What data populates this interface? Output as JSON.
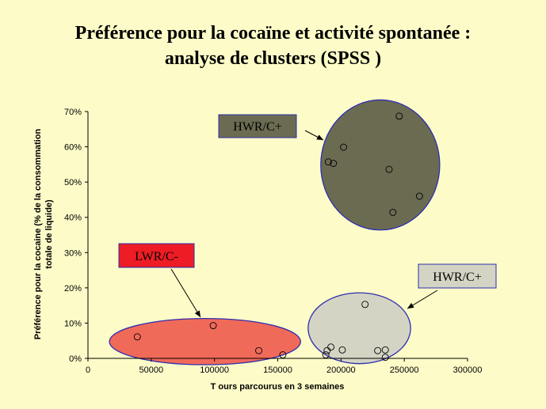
{
  "slide": {
    "title_line1": "Préférence pour la cocaïne et activité spontanée :",
    "title_line2": "analyse de clusters (SPSS )",
    "background": "#fdfcc8"
  },
  "chart_data": {
    "type": "scatter",
    "title": "",
    "xlabel": "T ours parcourus en 3 semaines",
    "ylabel_line1": "Préférence pour la cocaine (% de la consommation",
    "ylabel_line2": "totale de liquide)",
    "xlim": [
      0,
      300000
    ],
    "ylim": [
      0,
      0.7
    ],
    "x_ticks": [
      0,
      50000,
      100000,
      150000,
      200000,
      250000,
      300000
    ],
    "x_tick_labels": [
      "0",
      "50000",
      "100000",
      "150000",
      "200000",
      "250000",
      "300000"
    ],
    "y_ticks": [
      0,
      0.1,
      0.2,
      0.3,
      0.4,
      0.5,
      0.6,
      0.7
    ],
    "y_tick_labels": [
      "0%",
      "10%",
      "20%",
      "30%",
      "40%",
      "50%",
      "60%",
      "70%"
    ],
    "grid": false,
    "points": [
      {
        "x": 39000,
        "y": 0.061
      },
      {
        "x": 99000,
        "y": 0.093
      },
      {
        "x": 135000,
        "y": 0.022
      },
      {
        "x": 154000,
        "y": 0.01
      },
      {
        "x": 188000,
        "y": 0.01
      },
      {
        "x": 189000,
        "y": 0.022
      },
      {
        "x": 192000,
        "y": 0.032
      },
      {
        "x": 201000,
        "y": 0.024
      },
      {
        "x": 219000,
        "y": 0.153
      },
      {
        "x": 229000,
        "y": 0.022
      },
      {
        "x": 235000,
        "y": 0.003
      },
      {
        "x": 235000,
        "y": 0.024
      },
      {
        "x": 190000,
        "y": 0.557
      },
      {
        "x": 194000,
        "y": 0.553
      },
      {
        "x": 202000,
        "y": 0.599
      },
      {
        "x": 238000,
        "y": 0.536
      },
      {
        "x": 241000,
        "y": 0.414
      },
      {
        "x": 246000,
        "y": 0.687
      },
      {
        "x": 262000,
        "y": 0.46
      }
    ],
    "clusters": [
      {
        "label": "LWR/C-",
        "fill": "#f06a5a",
        "label_fill": "#ee1c24",
        "x_range": [
          17000,
          168000
        ],
        "y_range": [
          -0.018,
          0.113
        ]
      },
      {
        "label": "HWR/C+",
        "fill": "#d4d4c4",
        "label_fill": "#d4d4c4",
        "x_range": [
          174000,
          255000
        ],
        "y_range": [
          -0.015,
          0.186
        ]
      },
      {
        "label": "HWR/C+",
        "fill": "#6b6b52",
        "label_fill": "#6b6b52",
        "x_range": [
          184000,
          278000
        ],
        "y_range": [
          0.364,
          0.733
        ]
      }
    ]
  }
}
